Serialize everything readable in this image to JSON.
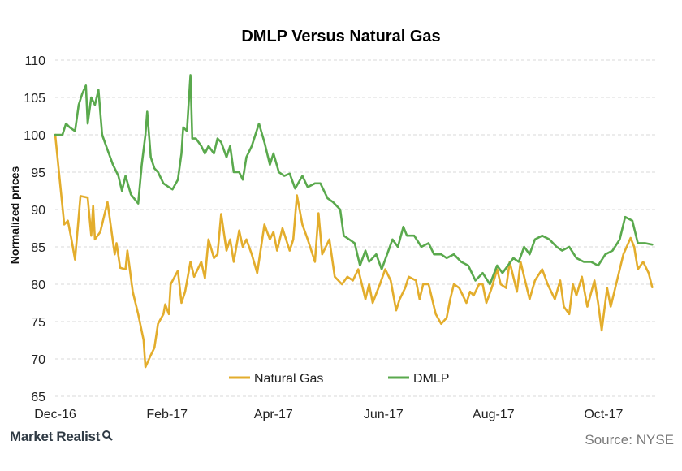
{
  "chart_data": {
    "type": "line",
    "title": "DMLP Versus Natural Gas",
    "ylabel": "Normalized prices",
    "xlabel": "",
    "ylim": [
      65,
      110
    ],
    "yticks": [
      65,
      70,
      75,
      80,
      85,
      90,
      95,
      100,
      105,
      110
    ],
    "xlim": [
      "2016-12-01",
      "2017-10-31"
    ],
    "xticks": [
      {
        "label": "Dec-16",
        "date": "2016-12-01"
      },
      {
        "label": "Feb-17",
        "date": "2017-02-01"
      },
      {
        "label": "Apr-17",
        "date": "2017-04-01"
      },
      {
        "label": "Jun-17",
        "date": "2017-06-01"
      },
      {
        "label": "Aug-17",
        "date": "2017-08-01"
      },
      {
        "label": "Oct-17",
        "date": "2017-10-01"
      }
    ],
    "grid": true,
    "legend_position": "bottom-center",
    "series": [
      {
        "name": "Natural Gas",
        "color": "#e3ad2c",
        "points": [
          [
            "2016-12-01",
            100
          ],
          [
            "2016-12-06",
            88
          ],
          [
            "2016-12-08",
            88.5
          ],
          [
            "2016-12-10",
            86
          ],
          [
            "2016-12-12",
            83.3
          ],
          [
            "2016-12-15",
            91.8
          ],
          [
            "2016-12-19",
            91.6
          ],
          [
            "2016-12-21",
            86.5
          ],
          [
            "2016-12-22",
            90.5
          ],
          [
            "2016-12-23",
            86
          ],
          [
            "2016-12-26",
            87
          ],
          [
            "2016-12-30",
            91
          ],
          [
            "2017-01-03",
            84
          ],
          [
            "2017-01-04",
            85.5
          ],
          [
            "2017-01-06",
            82.2
          ],
          [
            "2017-01-09",
            82
          ],
          [
            "2017-01-10",
            84.5
          ],
          [
            "2017-01-13",
            79
          ],
          [
            "2017-01-16",
            76
          ],
          [
            "2017-01-19",
            72.5
          ],
          [
            "2017-01-20",
            68.9
          ],
          [
            "2017-01-23",
            70.5
          ],
          [
            "2017-01-25",
            71.5
          ],
          [
            "2017-01-27",
            74.7
          ],
          [
            "2017-01-30",
            76
          ],
          [
            "2017-01-31",
            77.3
          ],
          [
            "2017-02-02",
            76
          ],
          [
            "2017-02-03",
            80
          ],
          [
            "2017-02-07",
            81.8
          ],
          [
            "2017-02-09",
            77.5
          ],
          [
            "2017-02-11",
            79
          ],
          [
            "2017-02-14",
            83
          ],
          [
            "2017-02-16",
            81
          ],
          [
            "2017-02-20",
            83
          ],
          [
            "2017-02-22",
            80.8
          ],
          [
            "2017-02-24",
            86
          ],
          [
            "2017-02-27",
            83.5
          ],
          [
            "2017-03-01",
            84
          ],
          [
            "2017-03-03",
            89.4
          ],
          [
            "2017-03-06",
            84.5
          ],
          [
            "2017-03-08",
            86
          ],
          [
            "2017-03-10",
            83
          ],
          [
            "2017-03-13",
            87.2
          ],
          [
            "2017-03-15",
            85
          ],
          [
            "2017-03-17",
            86
          ],
          [
            "2017-03-20",
            84
          ],
          [
            "2017-03-23",
            81.5
          ],
          [
            "2017-03-27",
            88
          ],
          [
            "2017-03-30",
            86
          ],
          [
            "2017-04-01",
            87
          ],
          [
            "2017-04-03",
            84.5
          ],
          [
            "2017-04-06",
            87.5
          ],
          [
            "2017-04-10",
            84.5
          ],
          [
            "2017-04-12",
            86
          ],
          [
            "2017-04-14",
            91.9
          ],
          [
            "2017-04-17",
            88
          ],
          [
            "2017-04-20",
            86
          ],
          [
            "2017-04-24",
            83
          ],
          [
            "2017-04-26",
            89.5
          ],
          [
            "2017-04-28",
            84
          ],
          [
            "2017-05-02",
            86
          ],
          [
            "2017-05-05",
            81
          ],
          [
            "2017-05-09",
            80
          ],
          [
            "2017-05-12",
            81
          ],
          [
            "2017-05-15",
            80.5
          ],
          [
            "2017-05-18",
            82
          ],
          [
            "2017-05-22",
            78
          ],
          [
            "2017-05-24",
            80
          ],
          [
            "2017-05-26",
            77.5
          ],
          [
            "2017-05-30",
            80
          ],
          [
            "2017-06-02",
            82
          ],
          [
            "2017-06-05",
            80.5
          ],
          [
            "2017-06-08",
            76.5
          ],
          [
            "2017-06-10",
            78
          ],
          [
            "2017-06-13",
            79.5
          ],
          [
            "2017-06-15",
            81
          ],
          [
            "2017-06-19",
            80.5
          ],
          [
            "2017-06-21",
            78
          ],
          [
            "2017-06-23",
            80
          ],
          [
            "2017-06-26",
            80
          ],
          [
            "2017-06-28",
            78
          ],
          [
            "2017-06-30",
            76
          ],
          [
            "2017-07-03",
            74.7
          ],
          [
            "2017-07-06",
            75.5
          ],
          [
            "2017-07-08",
            78
          ],
          [
            "2017-07-10",
            80
          ],
          [
            "2017-07-13",
            79.5
          ],
          [
            "2017-07-17",
            77.5
          ],
          [
            "2017-07-19",
            79
          ],
          [
            "2017-07-21",
            78.5
          ],
          [
            "2017-07-24",
            80
          ],
          [
            "2017-07-26",
            80
          ],
          [
            "2017-07-28",
            77.5
          ],
          [
            "2017-07-31",
            79.5
          ],
          [
            "2017-08-03",
            82
          ],
          [
            "2017-08-05",
            80
          ],
          [
            "2017-08-08",
            79.5
          ],
          [
            "2017-08-10",
            83
          ],
          [
            "2017-08-14",
            79
          ],
          [
            "2017-08-16",
            83
          ],
          [
            "2017-08-18",
            81
          ],
          [
            "2017-08-21",
            78
          ],
          [
            "2017-08-24",
            80.5
          ],
          [
            "2017-08-28",
            82
          ],
          [
            "2017-08-31",
            80
          ],
          [
            "2017-09-04",
            78
          ],
          [
            "2017-09-07",
            80.5
          ],
          [
            "2017-09-09",
            77
          ],
          [
            "2017-09-12",
            76
          ],
          [
            "2017-09-14",
            80
          ],
          [
            "2017-09-16",
            78.5
          ],
          [
            "2017-09-19",
            81
          ],
          [
            "2017-09-22",
            77
          ],
          [
            "2017-09-26",
            80.5
          ],
          [
            "2017-09-28",
            77.5
          ],
          [
            "2017-09-30",
            73.8
          ],
          [
            "2017-10-03",
            79.5
          ],
          [
            "2017-10-05",
            77
          ],
          [
            "2017-10-09",
            81
          ],
          [
            "2017-10-12",
            84
          ],
          [
            "2017-10-16",
            86.2
          ],
          [
            "2017-10-18",
            85
          ],
          [
            "2017-10-20",
            82
          ],
          [
            "2017-10-23",
            83
          ],
          [
            "2017-10-26",
            81.5
          ],
          [
            "2017-10-28",
            79.6
          ]
        ]
      },
      {
        "name": "DMLP",
        "color": "#5aa94d",
        "points": [
          [
            "2016-12-01",
            100
          ],
          [
            "2016-12-03",
            100
          ],
          [
            "2016-12-05",
            100
          ],
          [
            "2016-12-07",
            101.5
          ],
          [
            "2016-12-09",
            101
          ],
          [
            "2016-12-12",
            100.5
          ],
          [
            "2016-12-14",
            104
          ],
          [
            "2016-12-16",
            105.5
          ],
          [
            "2016-12-18",
            106.6
          ],
          [
            "2016-12-19",
            101.5
          ],
          [
            "2016-12-21",
            105
          ],
          [
            "2016-12-23",
            104
          ],
          [
            "2016-12-25",
            106
          ],
          [
            "2016-12-27",
            100
          ],
          [
            "2016-12-30",
            98
          ],
          [
            "2017-01-02",
            96
          ],
          [
            "2017-01-05",
            94.5
          ],
          [
            "2017-01-07",
            92.5
          ],
          [
            "2017-01-09",
            94.5
          ],
          [
            "2017-01-12",
            92
          ],
          [
            "2017-01-16",
            90.8
          ],
          [
            "2017-01-18",
            96
          ],
          [
            "2017-01-20",
            100
          ],
          [
            "2017-01-21",
            103.1
          ],
          [
            "2017-01-23",
            97
          ],
          [
            "2017-01-25",
            95.5
          ],
          [
            "2017-01-27",
            95
          ],
          [
            "2017-01-30",
            93.5
          ],
          [
            "2017-02-02",
            93
          ],
          [
            "2017-02-04",
            92.7
          ],
          [
            "2017-02-07",
            94
          ],
          [
            "2017-02-09",
            97.5
          ],
          [
            "2017-02-10",
            101
          ],
          [
            "2017-02-12",
            100.5
          ],
          [
            "2017-02-14",
            108
          ],
          [
            "2017-02-15",
            99.5
          ],
          [
            "2017-02-17",
            99.5
          ],
          [
            "2017-02-20",
            98.5
          ],
          [
            "2017-02-22",
            97.5
          ],
          [
            "2017-02-24",
            98.5
          ],
          [
            "2017-02-27",
            97.5
          ],
          [
            "2017-03-01",
            99.5
          ],
          [
            "2017-03-03",
            99
          ],
          [
            "2017-03-06",
            97
          ],
          [
            "2017-03-08",
            98.5
          ],
          [
            "2017-03-10",
            95
          ],
          [
            "2017-03-13",
            95
          ],
          [
            "2017-03-15",
            94
          ],
          [
            "2017-03-17",
            97
          ],
          [
            "2017-03-20",
            98.5
          ],
          [
            "2017-03-24",
            101.5
          ],
          [
            "2017-03-27",
            99
          ],
          [
            "2017-03-30",
            96
          ],
          [
            "2017-04-01",
            97.5
          ],
          [
            "2017-04-04",
            95
          ],
          [
            "2017-04-07",
            94.5
          ],
          [
            "2017-04-10",
            94.8
          ],
          [
            "2017-04-13",
            92.8
          ],
          [
            "2017-04-17",
            94.5
          ],
          [
            "2017-04-20",
            93
          ],
          [
            "2017-04-24",
            93.5
          ],
          [
            "2017-04-27",
            93.5
          ],
          [
            "2017-05-01",
            91.5
          ],
          [
            "2017-05-04",
            91
          ],
          [
            "2017-05-08",
            90
          ],
          [
            "2017-05-10",
            86.5
          ],
          [
            "2017-05-13",
            86
          ],
          [
            "2017-05-16",
            85.5
          ],
          [
            "2017-05-19",
            82.5
          ],
          [
            "2017-05-22",
            84.5
          ],
          [
            "2017-05-24",
            83
          ],
          [
            "2017-05-28",
            84
          ],
          [
            "2017-05-31",
            82
          ],
          [
            "2017-06-03",
            84
          ],
          [
            "2017-06-06",
            86
          ],
          [
            "2017-06-09",
            85
          ],
          [
            "2017-06-12",
            87.7
          ],
          [
            "2017-06-14",
            86.5
          ],
          [
            "2017-06-18",
            86.5
          ],
          [
            "2017-06-22",
            85
          ],
          [
            "2017-06-26",
            85.5
          ],
          [
            "2017-06-29",
            84
          ],
          [
            "2017-07-03",
            84
          ],
          [
            "2017-07-06",
            83.5
          ],
          [
            "2017-07-10",
            84
          ],
          [
            "2017-07-14",
            83
          ],
          [
            "2017-07-18",
            82.5
          ],
          [
            "2017-07-22",
            80.5
          ],
          [
            "2017-07-26",
            81.5
          ],
          [
            "2017-07-30",
            80
          ],
          [
            "2017-08-03",
            82.5
          ],
          [
            "2017-08-06",
            81.5
          ],
          [
            "2017-08-09",
            82.5
          ],
          [
            "2017-08-12",
            83.5
          ],
          [
            "2017-08-15",
            83
          ],
          [
            "2017-08-18",
            85
          ],
          [
            "2017-08-21",
            84
          ],
          [
            "2017-08-24",
            86
          ],
          [
            "2017-08-28",
            86.5
          ],
          [
            "2017-09-01",
            86
          ],
          [
            "2017-09-05",
            85
          ],
          [
            "2017-09-08",
            84.5
          ],
          [
            "2017-09-12",
            85
          ],
          [
            "2017-09-16",
            83.5
          ],
          [
            "2017-09-20",
            83
          ],
          [
            "2017-09-24",
            83
          ],
          [
            "2017-09-28",
            82.5
          ],
          [
            "2017-10-02",
            84
          ],
          [
            "2017-10-06",
            84.5
          ],
          [
            "2017-10-10",
            86
          ],
          [
            "2017-10-13",
            89
          ],
          [
            "2017-10-17",
            88.5
          ],
          [
            "2017-10-20",
            85.5
          ],
          [
            "2017-10-24",
            85.5
          ],
          [
            "2017-10-28",
            85.3
          ]
        ]
      }
    ]
  },
  "footer": {
    "brand": "Market Realist",
    "source": "Source: NYSE"
  }
}
